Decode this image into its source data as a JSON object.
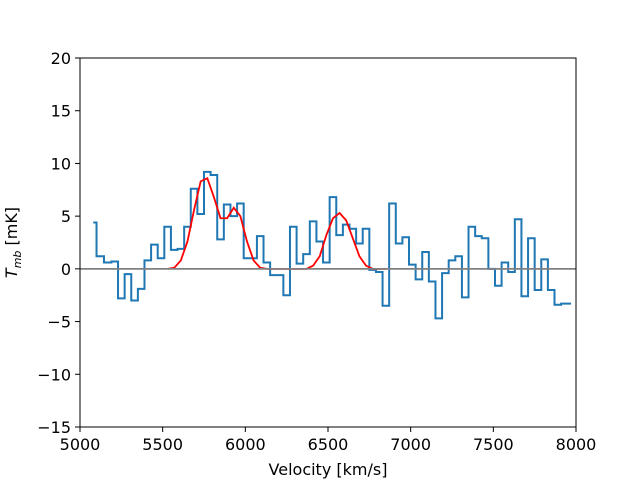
{
  "chart_data": {
    "type": "line",
    "xlabel": "Velocity [km/s]",
    "ylabel_main": "T",
    "ylabel_sub": "mb",
    "ylabel_unit": " [mK]",
    "xlim": [
      5000,
      8000
    ],
    "ylim": [
      -15,
      20
    ],
    "xticks": [
      5000,
      5500,
      6000,
      6500,
      7000,
      7500,
      8000
    ],
    "yticks": [
      -15,
      -10,
      -5,
      0,
      5,
      10,
      15,
      20
    ],
    "grid": false,
    "colors": {
      "spectrum": "#1f77b4",
      "fit": "#ff0000",
      "baseline": "#808080"
    },
    "series": [
      {
        "type": "step",
        "color": "#1f77b4",
        "x": [
          5080,
          5120,
          5170,
          5210,
          5250,
          5290,
          5330,
          5370,
          5410,
          5450,
          5490,
          5530,
          5570,
          5610,
          5650,
          5690,
          5730,
          5770,
          5810,
          5850,
          5890,
          5930,
          5970,
          6010,
          6050,
          6090,
          6130,
          6170,
          6210,
          6250,
          6290,
          6330,
          6370,
          6410,
          6450,
          6490,
          6530,
          6570,
          6610,
          6650,
          6690,
          6730,
          6770,
          6810,
          6850,
          6890,
          6930,
          6970,
          7010,
          7050,
          7090,
          7130,
          7170,
          7210,
          7250,
          7290,
          7330,
          7370,
          7410,
          7450,
          7490,
          7530,
          7570,
          7610,
          7650,
          7690,
          7730,
          7770,
          7810,
          7850,
          7890,
          7930,
          7970
        ],
        "values": [
          4.4,
          1.2,
          0.6,
          0.7,
          -2.8,
          -0.5,
          -3.0,
          -1.9,
          0.8,
          2.3,
          1.0,
          4.0,
          1.8,
          1.9,
          4.0,
          7.6,
          5.2,
          9.2,
          8.9,
          2.8,
          6.1,
          5.0,
          6.2,
          1.0,
          1.0,
          3.1,
          0.6,
          -0.6,
          -0.6,
          -2.5,
          4.0,
          0.5,
          1.4,
          4.5,
          2.6,
          0.6,
          6.8,
          3.2,
          4.2,
          3.8,
          2.4,
          3.8,
          -0.1,
          -0.3,
          -3.5,
          6.2,
          2.4,
          3.0,
          0.4,
          -1.0,
          1.6,
          -1.2,
          -4.7,
          -0.4,
          0.8,
          1.2,
          -2.7,
          4.0,
          3.1,
          2.9,
          0.0,
          -1.6,
          0.6,
          -0.3,
          4.7,
          -2.6,
          2.9,
          -2.0,
          0.9,
          -2.0,
          -3.4,
          -3.3,
          -3.3
        ]
      },
      {
        "type": "fit",
        "color": "#ff0000",
        "x": [
          5530,
          5570,
          5610,
          5650,
          5690,
          5730,
          5770,
          5810,
          5850,
          5890,
          5930,
          5970,
          6010,
          6050,
          6090,
          6130,
          6170,
          6210,
          6250,
          6290,
          6330,
          6370,
          6410,
          6450,
          6490,
          6530,
          6570,
          6610,
          6650,
          6690,
          6730,
          6770,
          6810,
          6850
        ],
        "values": [
          0.0,
          0.1,
          0.8,
          2.6,
          5.6,
          8.3,
          8.6,
          6.8,
          4.8,
          4.8,
          5.8,
          5.0,
          2.6,
          0.8,
          0.1,
          0.0,
          0.0,
          0.0,
          0.0,
          0.0,
          0.0,
          0.0,
          0.3,
          1.2,
          3.2,
          4.8,
          5.3,
          4.6,
          2.9,
          1.2,
          0.3,
          0.0,
          0.0,
          0.0
        ]
      },
      {
        "type": "baseline",
        "color": "#808080",
        "x": [
          5000,
          8000
        ],
        "values": [
          0,
          0
        ]
      }
    ]
  }
}
